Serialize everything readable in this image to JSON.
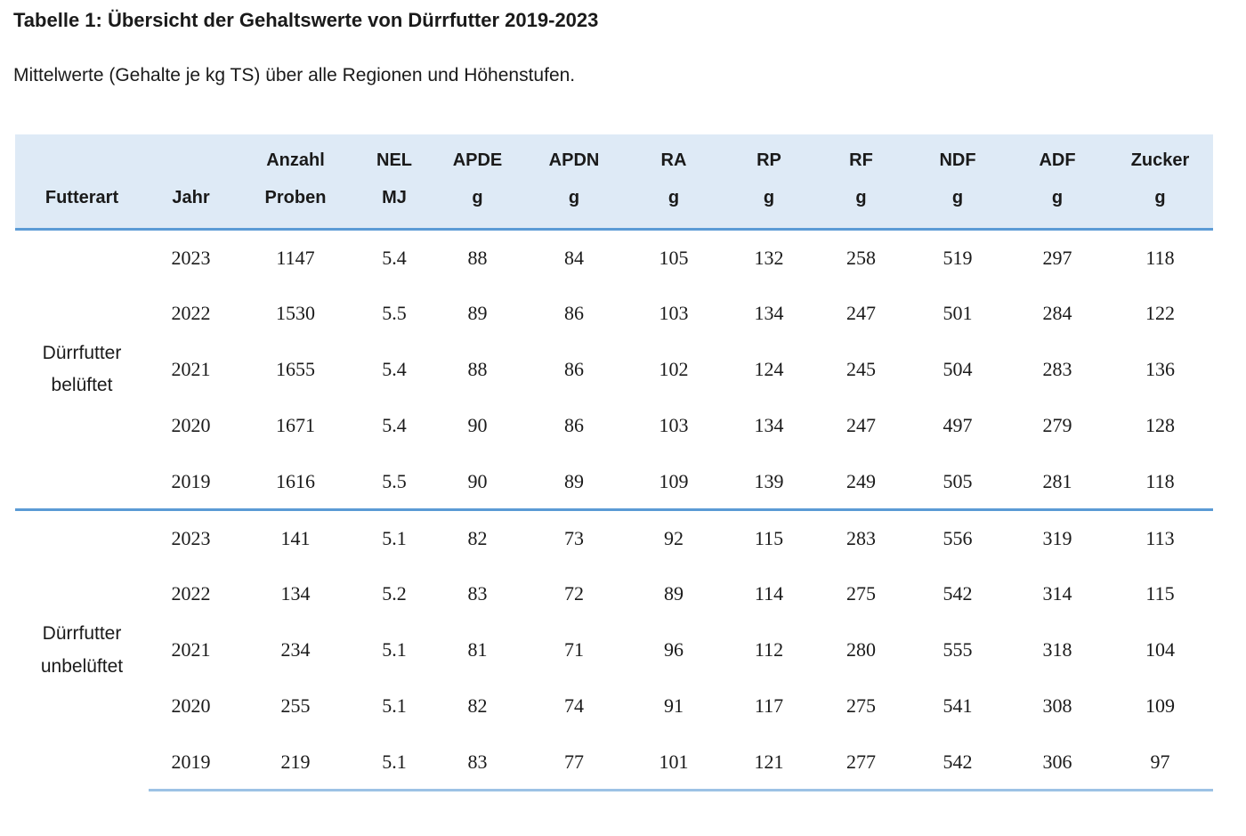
{
  "doc": {
    "title": "Tabelle 1: Übersicht der Gehaltswerte von Dürrfutter 2019-2023",
    "subtitle": "Mittelwerte (Gehalte je kg TS) über alle Regionen und Höhenstufen."
  },
  "table": {
    "columns": [
      {
        "id": "futterart",
        "line1": "",
        "line2": "Futterart"
      },
      {
        "id": "jahr",
        "line1": "",
        "line2": "Jahr"
      },
      {
        "id": "anzahl-proben",
        "line1": "Anzahl",
        "line2": "Proben"
      },
      {
        "id": "nel",
        "line1": "NEL",
        "line2": "MJ"
      },
      {
        "id": "apde",
        "line1": "APDE",
        "line2": "g"
      },
      {
        "id": "apdn",
        "line1": "APDN",
        "line2": "g"
      },
      {
        "id": "ra",
        "line1": "RA",
        "line2": "g"
      },
      {
        "id": "rp",
        "line1": "RP",
        "line2": "g"
      },
      {
        "id": "rf",
        "line1": "RF",
        "line2": "g"
      },
      {
        "id": "ndf",
        "line1": "NDF",
        "line2": "g"
      },
      {
        "id": "adf",
        "line1": "ADF",
        "line2": "g"
      },
      {
        "id": "zucker",
        "line1": "Zucker",
        "line2": "g"
      }
    ],
    "groups": [
      {
        "label": "Dürrfutter belüftet",
        "rows": [
          [
            "2023",
            "1147",
            "5.4",
            "88",
            "84",
            "105",
            "132",
            "258",
            "519",
            "297",
            "118"
          ],
          [
            "2022",
            "1530",
            "5.5",
            "89",
            "86",
            "103",
            "134",
            "247",
            "501",
            "284",
            "122"
          ],
          [
            "2021",
            "1655",
            "5.4",
            "88",
            "86",
            "102",
            "124",
            "245",
            "504",
            "283",
            "136"
          ],
          [
            "2020",
            "1671",
            "5.4",
            "90",
            "86",
            "103",
            "134",
            "247",
            "497",
            "279",
            "128"
          ],
          [
            "2019",
            "1616",
            "5.5",
            "90",
            "89",
            "109",
            "139",
            "249",
            "505",
            "281",
            "118"
          ]
        ]
      },
      {
        "label": "Dürrfutter unbelüftet",
        "rows": [
          [
            "2023",
            "141",
            "5.1",
            "82",
            "73",
            "92",
            "115",
            "283",
            "556",
            "319",
            "113"
          ],
          [
            "2022",
            "134",
            "5.2",
            "83",
            "72",
            "89",
            "114",
            "275",
            "542",
            "314",
            "115"
          ],
          [
            "2021",
            "234",
            "5.1",
            "81",
            "71",
            "96",
            "112",
            "280",
            "555",
            "318",
            "104"
          ],
          [
            "2020",
            "255",
            "5.1",
            "82",
            "74",
            "91",
            "117",
            "275",
            "541",
            "308",
            "109"
          ],
          [
            "2019",
            "219",
            "5.1",
            "83",
            "77",
            "101",
            "121",
            "277",
            "542",
            "306",
            "97"
          ]
        ]
      }
    ],
    "colors": {
      "header_bg": "#deeaf6",
      "rule_strong": "#5b9bd5",
      "rule_light": "#9cc2e5"
    }
  }
}
